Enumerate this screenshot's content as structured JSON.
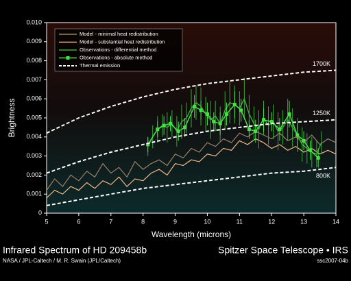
{
  "chart_data": {
    "type": "line",
    "title": "Infrared Spectrum of HD 209458b",
    "credit": "NASA / JPL-Caltech / M. R. Swain (JPL/Caltech)",
    "observatory": "Spitzer Space Telescope • IRS",
    "image_id": "ssc2007-04b",
    "xlabel": "Wavelength (microns)",
    "ylabel": "Brightness",
    "xlim": [
      5,
      14
    ],
    "xticks": [
      5,
      6,
      7,
      8,
      9,
      10,
      11,
      12,
      13,
      14
    ],
    "ylim": [
      0,
      0.01
    ],
    "yticks": [
      0,
      0.001,
      0.002,
      0.003,
      0.004,
      0.005,
      0.006,
      0.007,
      0.008,
      0.009,
      {
        "value": 0.01,
        "label": "0.010"
      }
    ],
    "legend": "upper left",
    "series": [
      {
        "name": "Model - minimal heat redistribution",
        "color": "#9c8068",
        "x": [
          5,
          5.25,
          5.5,
          5.75,
          6,
          6.25,
          6.5,
          6.75,
          7,
          7.25,
          7.5,
          7.75,
          8,
          8.25,
          8.5,
          8.75,
          9,
          9.25,
          9.5,
          9.75,
          10,
          10.25,
          10.5,
          10.75,
          11,
          11.25,
          11.5,
          11.75,
          12,
          12.25,
          12.5,
          12.75,
          13,
          13.25,
          13.5,
          13.75,
          14
        ],
        "values": [
          0.0012,
          0.0018,
          0.0014,
          0.002,
          0.0017,
          0.0022,
          0.0019,
          0.0026,
          0.0021,
          0.0024,
          0.0019,
          0.0027,
          0.0023,
          0.0026,
          0.0028,
          0.0025,
          0.0031,
          0.0029,
          0.0034,
          0.0032,
          0.0037,
          0.0035,
          0.0039,
          0.0037,
          0.0042,
          0.004,
          0.0043,
          0.0041,
          0.0039,
          0.0042,
          0.0038,
          0.004,
          0.0037,
          0.0041,
          0.0036,
          0.0039,
          0.0037
        ]
      },
      {
        "name": "Model - substantial heat redistribution",
        "color": "#f2b888",
        "x": [
          5,
          5.25,
          5.5,
          5.75,
          6,
          6.25,
          6.5,
          6.75,
          7,
          7.25,
          7.5,
          7.75,
          8,
          8.25,
          8.5,
          8.75,
          9,
          9.25,
          9.5,
          9.75,
          10,
          10.25,
          10.5,
          10.75,
          11,
          11.25,
          11.5,
          11.75,
          12,
          12.25,
          12.5,
          12.75,
          13,
          13.25,
          13.5,
          13.75,
          14
        ],
        "values": [
          0.0008,
          0.0012,
          0.001,
          0.0014,
          0.0012,
          0.0016,
          0.0013,
          0.0017,
          0.0015,
          0.0019,
          0.0014,
          0.0018,
          0.0017,
          0.0021,
          0.0023,
          0.002,
          0.0026,
          0.0025,
          0.0028,
          0.0027,
          0.0031,
          0.003,
          0.0034,
          0.0033,
          0.0038,
          0.0036,
          0.0039,
          0.0037,
          0.0034,
          0.0036,
          0.0033,
          0.0035,
          0.0032,
          0.0034,
          0.0031,
          0.0033,
          0.0031
        ]
      },
      {
        "name": "Observations - differential method",
        "color": "#3aa83a",
        "x": [
          8.15,
          8.3,
          8.45,
          8.6,
          8.75,
          8.9,
          9.05,
          9.2,
          9.35,
          9.5,
          9.65,
          9.8,
          9.95,
          10.1,
          10.25,
          10.4,
          10.55,
          10.7,
          10.85,
          11.0,
          11.15,
          11.3,
          11.45,
          11.6,
          11.75,
          11.9,
          12.05,
          12.2,
          12.35,
          12.5,
          12.65,
          12.8,
          12.95,
          13.1,
          13.25,
          13.4,
          13.55
        ],
        "values": [
          0.0035,
          0.004,
          0.0044,
          0.0046,
          0.0045,
          0.0047,
          0.0043,
          0.0048,
          0.005,
          0.0055,
          0.0058,
          0.0056,
          0.0052,
          0.0049,
          0.0051,
          0.0047,
          0.0054,
          0.0058,
          0.0057,
          0.0055,
          0.006,
          0.0052,
          0.0047,
          0.0044,
          0.005,
          0.0046,
          0.0048,
          0.0043,
          0.0045,
          0.0049,
          0.0045,
          0.0041,
          0.0036,
          0.0034,
          0.0032,
          0.0031,
          0.0037
        ],
        "errors": [
          0.0005,
          0.0006,
          0.0007,
          0.0006,
          0.0008,
          0.0007,
          0.0008,
          0.0009,
          0.0008,
          0.001,
          0.0009,
          0.001,
          0.0009,
          0.001,
          0.0008,
          0.0009,
          0.001,
          0.0011,
          0.001,
          0.0009,
          0.0011,
          0.001,
          0.0009,
          0.001,
          0.0009,
          0.001,
          0.0009,
          0.001,
          0.0009,
          0.0011,
          0.001,
          0.0009,
          0.0009,
          0.0008,
          0.0008,
          0.0007,
          0.0006
        ]
      },
      {
        "name": "Observations - absolute method",
        "color": "#44e044",
        "x": [
          8.15,
          8.45,
          8.65,
          8.85,
          9.1,
          9.3,
          9.6,
          9.8,
          10.0,
          10.2,
          10.4,
          10.6,
          10.85,
          11.05,
          11.3,
          11.5,
          11.75,
          12.0,
          12.25,
          12.55,
          12.8,
          13.0,
          13.2,
          13.45
        ],
        "values": [
          0.0036,
          0.0044,
          0.0046,
          0.0047,
          0.0043,
          0.0045,
          0.0056,
          0.0054,
          0.0052,
          0.0048,
          0.0047,
          0.0052,
          0.0057,
          0.0054,
          0.0044,
          0.0043,
          0.0049,
          0.0048,
          0.0044,
          0.0052,
          0.0041,
          0.0038,
          0.0033,
          0.0029
        ],
        "errors": [
          0.0004,
          0.0004,
          0.0005,
          0.0004,
          0.0005,
          0.0005,
          0.0006,
          0.0005,
          0.0006,
          0.0005,
          0.0006,
          0.0006,
          0.0007,
          0.0006,
          0.0005,
          0.0006,
          0.0006,
          0.0005,
          0.0006,
          0.0007,
          0.0006,
          0.0005,
          0.0005,
          0.0005
        ]
      },
      {
        "name": "Thermal emission",
        "color": "#ffffff",
        "dashed": true,
        "x": [
          5,
          6,
          7,
          8,
          9,
          10,
          11,
          12,
          13,
          14
        ],
        "curves": [
          {
            "label": "1700K",
            "values": [
              0.0042,
              0.005,
              0.0056,
              0.0061,
              0.0065,
              0.0068,
              0.007,
              0.0072,
              0.0074,
              0.0075
            ]
          },
          {
            "label": "1250K",
            "values": [
              0.0021,
              0.0027,
              0.0032,
              0.0036,
              0.004,
              0.0043,
              0.0045,
              0.0047,
              0.0048,
              0.0049
            ]
          },
          {
            "label": "800K",
            "values": [
              0.0004,
              0.0007,
              0.001,
              0.0013,
              0.0015,
              0.0017,
              0.0019,
              0.0021,
              0.0022,
              0.0024
            ]
          }
        ]
      }
    ]
  }
}
